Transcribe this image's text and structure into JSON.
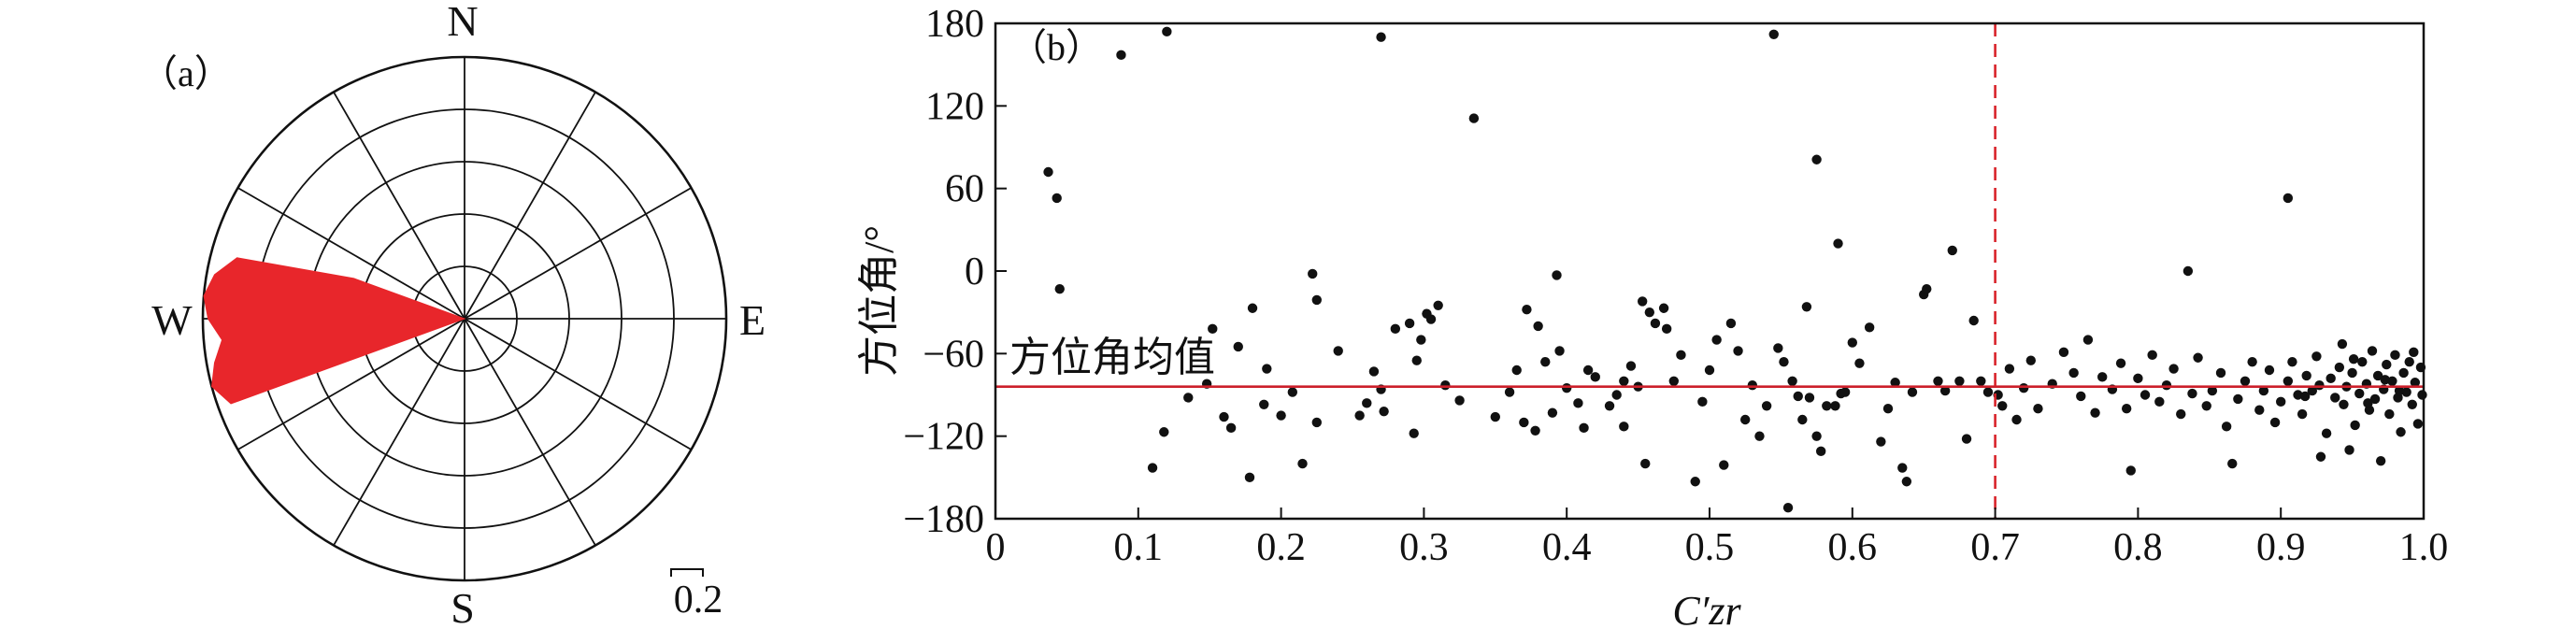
{
  "colors": {
    "accent": "#e8262b",
    "points": "#111111",
    "mean_line": "#cc1f2a",
    "threshold_line": "#d8232a"
  },
  "rose": {
    "panel_label": "（a）",
    "compass": {
      "n": "N",
      "e": "E",
      "s": "S",
      "w": "W"
    },
    "scale_label": "0.2",
    "rings": [
      0.2,
      0.4,
      0.6,
      0.8,
      1.0
    ],
    "sector_step_deg": 30,
    "petals": [
      {
        "azimuth": 250,
        "value": 0.95
      },
      {
        "azimuth": 255,
        "value": 1.0
      },
      {
        "azimuth": 260,
        "value": 0.97
      },
      {
        "azimuth": 265,
        "value": 0.93
      },
      {
        "azimuth": 270,
        "value": 0.98
      },
      {
        "azimuth": 275,
        "value": 1.0
      },
      {
        "azimuth": 280,
        "value": 0.97
      },
      {
        "azimuth": 285,
        "value": 0.9
      },
      {
        "azimuth": 290,
        "value": 0.45
      }
    ]
  },
  "chart_data": {
    "type": "scatter",
    "panel_label": "（b）",
    "xlabel": "C′zr",
    "ylabel": "方位角/°",
    "xlim": [
      0,
      1.0
    ],
    "ylim": [
      -180,
      180
    ],
    "xticks": [
      "0",
      "0.1",
      "0.2",
      "0.3",
      "0.4",
      "0.5",
      "0.6",
      "0.7",
      "0.8",
      "0.9",
      "1.0"
    ],
    "yticks": [
      "180",
      "120",
      "60",
      "0",
      "−60",
      "−120",
      "−180"
    ],
    "mean_line": {
      "y": -84,
      "label": "方位角均值"
    },
    "threshold_line": {
      "x": 0.7
    },
    "points": [
      [
        0.037,
        72
      ],
      [
        0.043,
        53
      ],
      [
        0.045,
        -13
      ],
      [
        0.088,
        157
      ],
      [
        0.12,
        174
      ],
      [
        0.27,
        170
      ],
      [
        0.335,
        111
      ],
      [
        0.545,
        172
      ],
      [
        0.575,
        81
      ],
      [
        0.59,
        20
      ],
      [
        0.67,
        15
      ],
      [
        0.905,
        53
      ],
      [
        0.835,
        0
      ],
      [
        0.393,
        -3
      ],
      [
        0.222,
        -2
      ],
      [
        0.225,
        -21
      ],
      [
        0.11,
        -143
      ],
      [
        0.118,
        -117
      ],
      [
        0.135,
        -92
      ],
      [
        0.148,
        -82
      ],
      [
        0.152,
        -42
      ],
      [
        0.16,
        -106
      ],
      [
        0.165,
        -114
      ],
      [
        0.17,
        -55
      ],
      [
        0.178,
        -150
      ],
      [
        0.18,
        -27
      ],
      [
        0.188,
        -97
      ],
      [
        0.19,
        -71
      ],
      [
        0.2,
        -105
      ],
      [
        0.208,
        -88
      ],
      [
        0.215,
        -140
      ],
      [
        0.225,
        -110
      ],
      [
        0.24,
        -58
      ],
      [
        0.255,
        -105
      ],
      [
        0.26,
        -96
      ],
      [
        0.265,
        -73
      ],
      [
        0.27,
        -86
      ],
      [
        0.272,
        -102
      ],
      [
        0.28,
        -42
      ],
      [
        0.29,
        -38
      ],
      [
        0.293,
        -118
      ],
      [
        0.295,
        -65
      ],
      [
        0.298,
        -50
      ],
      [
        0.302,
        -31
      ],
      [
        0.305,
        -35
      ],
      [
        0.31,
        -25
      ],
      [
        0.315,
        -83
      ],
      [
        0.325,
        -94
      ],
      [
        0.35,
        -106
      ],
      [
        0.36,
        -88
      ],
      [
        0.365,
        -72
      ],
      [
        0.37,
        -110
      ],
      [
        0.372,
        -28
      ],
      [
        0.378,
        -116
      ],
      [
        0.38,
        -40
      ],
      [
        0.385,
        -66
      ],
      [
        0.39,
        -103
      ],
      [
        0.395,
        -58
      ],
      [
        0.4,
        -85
      ],
      [
        0.408,
        -96
      ],
      [
        0.412,
        -114
      ],
      [
        0.415,
        -72
      ],
      [
        0.42,
        -77
      ],
      [
        0.43,
        -98
      ],
      [
        0.435,
        -90
      ],
      [
        0.44,
        -80
      ],
      [
        0.44,
        -113
      ],
      [
        0.445,
        -69
      ],
      [
        0.45,
        -84
      ],
      [
        0.453,
        -22
      ],
      [
        0.455,
        -140
      ],
      [
        0.458,
        -30
      ],
      [
        0.462,
        -38
      ],
      [
        0.468,
        -27
      ],
      [
        0.47,
        -42
      ],
      [
        0.475,
        -80
      ],
      [
        0.48,
        -61
      ],
      [
        0.49,
        -153
      ],
      [
        0.495,
        -95
      ],
      [
        0.5,
        -72
      ],
      [
        0.505,
        -50
      ],
      [
        0.51,
        -141
      ],
      [
        0.515,
        -38
      ],
      [
        0.52,
        -58
      ],
      [
        0.525,
        -108
      ],
      [
        0.53,
        -83
      ],
      [
        0.535,
        -120
      ],
      [
        0.54,
        -98
      ],
      [
        0.548,
        -56
      ],
      [
        0.552,
        -66
      ],
      [
        0.555,
        -172
      ],
      [
        0.558,
        -80
      ],
      [
        0.562,
        -91
      ],
      [
        0.565,
        -108
      ],
      [
        0.568,
        -26
      ],
      [
        0.57,
        -92
      ],
      [
        0.575,
        -120
      ],
      [
        0.578,
        -131
      ],
      [
        0.582,
        -98
      ],
      [
        0.588,
        -98
      ],
      [
        0.592,
        -89
      ],
      [
        0.595,
        -88
      ],
      [
        0.6,
        -52
      ],
      [
        0.605,
        -67
      ],
      [
        0.612,
        -41
      ],
      [
        0.62,
        -124
      ],
      [
        0.625,
        -100
      ],
      [
        0.63,
        -81
      ],
      [
        0.635,
        -143
      ],
      [
        0.638,
        -153
      ],
      [
        0.642,
        -88
      ],
      [
        0.65,
        -17
      ],
      [
        0.652,
        -13
      ],
      [
        0.66,
        -80
      ],
      [
        0.665,
        -87
      ],
      [
        0.675,
        -80
      ],
      [
        0.68,
        -122
      ],
      [
        0.685,
        -36
      ],
      [
        0.69,
        -80
      ],
      [
        0.695,
        -88
      ],
      [
        0.702,
        -90
      ],
      [
        0.705,
        -98
      ],
      [
        0.71,
        -71
      ],
      [
        0.715,
        -108
      ],
      [
        0.72,
        -85
      ],
      [
        0.725,
        -65
      ],
      [
        0.73,
        -100
      ],
      [
        0.74,
        -82
      ],
      [
        0.748,
        -59
      ],
      [
        0.755,
        -74
      ],
      [
        0.76,
        -91
      ],
      [
        0.765,
        -50
      ],
      [
        0.77,
        -103
      ],
      [
        0.775,
        -77
      ],
      [
        0.782,
        -86
      ],
      [
        0.788,
        -67
      ],
      [
        0.792,
        -100
      ],
      [
        0.795,
        -145
      ],
      [
        0.8,
        -78
      ],
      [
        0.805,
        -90
      ],
      [
        0.81,
        -61
      ],
      [
        0.815,
        -95
      ],
      [
        0.82,
        -83
      ],
      [
        0.825,
        -71
      ],
      [
        0.83,
        -104
      ],
      [
        0.838,
        -89
      ],
      [
        0.842,
        -63
      ],
      [
        0.848,
        -98
      ],
      [
        0.852,
        -87
      ],
      [
        0.858,
        -74
      ],
      [
        0.862,
        -113
      ],
      [
        0.866,
        -140
      ],
      [
        0.87,
        -93
      ],
      [
        0.875,
        -80
      ],
      [
        0.88,
        -66
      ],
      [
        0.885,
        -101
      ],
      [
        0.888,
        -87
      ],
      [
        0.892,
        -72
      ],
      [
        0.896,
        -110
      ],
      [
        0.9,
        -95
      ],
      [
        0.905,
        -80
      ],
      [
        0.908,
        -66
      ],
      [
        0.912,
        -90
      ],
      [
        0.915,
        -104
      ],
      [
        0.918,
        -76
      ],
      [
        0.922,
        -87
      ],
      [
        0.925,
        -62
      ],
      [
        0.928,
        -135
      ],
      [
        0.932,
        -118
      ],
      [
        0.935,
        -78
      ],
      [
        0.938,
        -92
      ],
      [
        0.941,
        -70
      ],
      [
        0.944,
        -97
      ],
      [
        0.946,
        -84
      ],
      [
        0.948,
        -130
      ],
      [
        0.95,
        -74
      ],
      [
        0.952,
        -112
      ],
      [
        0.955,
        -89
      ],
      [
        0.957,
        -66
      ],
      [
        0.96,
        -82
      ],
      [
        0.962,
        -101
      ],
      [
        0.964,
        -58
      ],
      [
        0.966,
        -93
      ],
      [
        0.968,
        -76
      ],
      [
        0.97,
        -138
      ],
      [
        0.972,
        -86
      ],
      [
        0.974,
        -68
      ],
      [
        0.976,
        -104
      ],
      [
        0.978,
        -80
      ],
      [
        0.98,
        -61
      ],
      [
        0.982,
        -92
      ],
      [
        0.984,
        -117
      ],
      [
        0.986,
        -74
      ],
      [
        0.988,
        -88
      ],
      [
        0.99,
        -66
      ],
      [
        0.992,
        -97
      ],
      [
        0.994,
        -81
      ],
      [
        0.996,
        -111
      ],
      [
        0.998,
        -70
      ],
      [
        0.999,
        -90
      ],
      [
        0.943,
        -53
      ],
      [
        0.951,
        -64
      ],
      [
        0.961,
        -96
      ],
      [
        0.973,
        -79
      ],
      [
        0.983,
        -87
      ],
      [
        0.993,
        -59
      ],
      [
        0.927,
        -83
      ],
      [
        0.917,
        -91
      ]
    ]
  }
}
